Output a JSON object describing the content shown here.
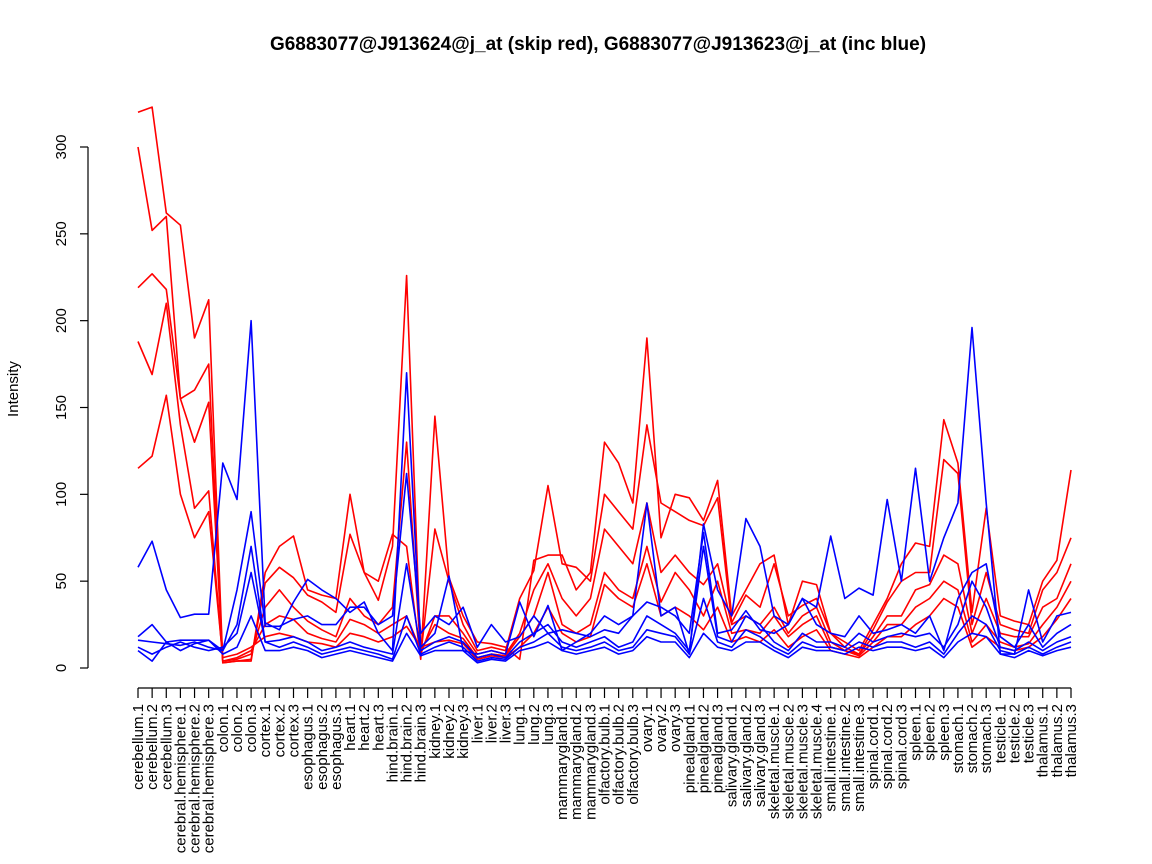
{
  "chart_data": {
    "type": "line",
    "title": "G6883077@J913624@j_at (skip red), G6883077@J913623@j_at (inc blue)",
    "xlabel": "",
    "ylabel": "Intensity",
    "ylim": [
      0,
      300
    ],
    "yticks": [
      0,
      50,
      100,
      150,
      200,
      250,
      300
    ],
    "categories": [
      "cerebellum.1",
      "cerebellum.2",
      "cerebellum.3",
      "cerebral.hemisphere.1",
      "cerebral.hemisphere.2",
      "cerebral.hemisphere.3",
      "colon.1",
      "colon.2",
      "colon.3",
      "cortex.1",
      "cortex.2",
      "cortex.3",
      "esophagus.1",
      "esophagus.2",
      "esophagus.3",
      "heart.1",
      "heart.2",
      "heart.3",
      "hind.brain.1",
      "hind.brain.2",
      "hind.brain.3",
      "kidney.1",
      "kidney.2",
      "kidney.3",
      "liver.1",
      "liver.2",
      "liver.3",
      "lung.1",
      "lung.2",
      "lung.3",
      "mammarygland.1",
      "mammarygland.2",
      "mammarygland.3",
      "olfactory.bulb.1",
      "olfactory.bulb.2",
      "olfactory.bulb.3",
      "ovary.1",
      "ovary.2",
      "ovary.3",
      "pinealgland.1",
      "pinealgland.2",
      "pinealgland.3",
      "salivary.gland.1",
      "salivary.gland.2",
      "salivary.gland.3",
      "skeletal.muscle.1",
      "skeletal.muscle.2",
      "skeletal.muscle.3",
      "skeletal.muscle.4",
      "small.intestine.1",
      "small.intestine.2",
      "small.intestine.3",
      "spinal.cord.1",
      "spinal.cord.2",
      "spinal.cord.3",
      "spleen.1",
      "spleen.2",
      "spleen.3",
      "stomach.1",
      "stomach.2",
      "stomach.3",
      "testicle.1",
      "testicle.2",
      "testicle.3",
      "thalamus.1",
      "thalamus.2",
      "thalamus.3"
    ],
    "series": [
      {
        "color": "#ff0000",
        "values": [
          320,
          323,
          262,
          255,
          190,
          212,
          3,
          4,
          4,
          55,
          70,
          76,
          45,
          42,
          40,
          100,
          55,
          50,
          77,
          70,
          5,
          145,
          52,
          30,
          15,
          14,
          12,
          5,
          62,
          65,
          65,
          45,
          55,
          130,
          118,
          95,
          190,
          75,
          100,
          98,
          85,
          108,
          30,
          45,
          60,
          65,
          25,
          50,
          48,
          20,
          15,
          10,
          25,
          40,
          60,
          72,
          70,
          143,
          118,
          32,
          92,
          30,
          27,
          25,
          50,
          62,
          114
        ]
      },
      {
        "color": "#ff0000",
        "values": [
          300,
          252,
          260,
          155,
          160,
          175,
          3,
          4,
          5,
          49,
          58,
          52,
          42,
          38,
          32,
          77,
          55,
          39,
          70,
          226,
          7,
          80,
          50,
          25,
          10,
          12,
          10,
          40,
          56,
          105,
          60,
          58,
          50,
          100,
          90,
          80,
          140,
          95,
          90,
          85,
          82,
          98,
          26,
          42,
          35,
          60,
          30,
          36,
          40,
          20,
          12,
          8,
          22,
          38,
          50,
          55,
          55,
          120,
          112,
          25,
          55,
          25,
          22,
          20,
          45,
          55,
          75
        ]
      },
      {
        "color": "#ff0000",
        "values": [
          219,
          227,
          218,
          155,
          130,
          153,
          4,
          5,
          8,
          35,
          45,
          35,
          27,
          22,
          18,
          40,
          30,
          25,
          35,
          130,
          8,
          30,
          30,
          20,
          8,
          10,
          8,
          20,
          45,
          60,
          40,
          30,
          40,
          80,
          70,
          60,
          95,
          55,
          65,
          55,
          48,
          60,
          25,
          30,
          25,
          35,
          20,
          30,
          35,
          15,
          10,
          8,
          18,
          30,
          30,
          45,
          48,
          65,
          60,
          20,
          40,
          20,
          18,
          18,
          35,
          40,
          60
        ]
      },
      {
        "color": "#ff0000",
        "values": [
          188,
          169,
          210,
          140,
          92,
          102,
          4,
          6,
          10,
          25,
          30,
          28,
          20,
          17,
          15,
          28,
          25,
          20,
          25,
          30,
          10,
          25,
          20,
          17,
          6,
          8,
          7,
          18,
          30,
          55,
          25,
          20,
          25,
          55,
          45,
          40,
          70,
          38,
          55,
          45,
          30,
          50,
          20,
          22,
          20,
          30,
          18,
          25,
          30,
          12,
          10,
          7,
          15,
          25,
          25,
          35,
          40,
          50,
          45,
          15,
          25,
          15,
          12,
          14,
          25,
          35,
          50
        ]
      },
      {
        "color": "#ff0000",
        "values": [
          115,
          122,
          157,
          100,
          75,
          90,
          6,
          8,
          12,
          18,
          20,
          18,
          15,
          14,
          12,
          20,
          18,
          15,
          18,
          24,
          12,
          15,
          16,
          14,
          5,
          7,
          6,
          12,
          20,
          35,
          20,
          15,
          18,
          48,
          40,
          35,
          60,
          30,
          35,
          30,
          22,
          35,
          15,
          18,
          15,
          22,
          12,
          18,
          22,
          10,
          8,
          6,
          12,
          18,
          18,
          25,
          30,
          40,
          35,
          12,
          18,
          12,
          10,
          12,
          18,
          28,
          40
        ]
      },
      {
        "color": "#0000ff",
        "values": [
          58,
          73,
          45,
          29,
          31,
          31,
          118,
          97,
          200,
          26,
          22,
          38,
          51,
          45,
          40,
          32,
          38,
          20,
          10,
          170,
          12,
          20,
          53,
          10,
          8,
          10,
          8,
          38,
          18,
          36,
          10,
          15,
          20,
          30,
          25,
          30,
          95,
          30,
          35,
          8,
          83,
          45,
          30,
          86,
          70,
          30,
          25,
          40,
          35,
          76,
          40,
          46,
          42,
          97,
          50,
          115,
          50,
          75,
          95,
          196,
          95,
          8,
          8,
          45,
          15,
          30,
          32
        ]
      },
      {
        "color": "#0000ff",
        "values": [
          18,
          25,
          15,
          16,
          16,
          16,
          10,
          45,
          90,
          24,
          24,
          28,
          30,
          25,
          25,
          35,
          35,
          25,
          30,
          112,
          20,
          30,
          25,
          35,
          12,
          25,
          15,
          18,
          30,
          20,
          22,
          20,
          18,
          22,
          20,
          30,
          38,
          35,
          30,
          20,
          78,
          20,
          22,
          33,
          22,
          20,
          25,
          40,
          25,
          20,
          18,
          30,
          20,
          22,
          25,
          20,
          30,
          10,
          40,
          55,
          60,
          18,
          12,
          25,
          12,
          20,
          25
        ]
      },
      {
        "color": "#0000ff",
        "values": [
          16,
          15,
          14,
          13,
          15,
          12,
          10,
          25,
          70,
          15,
          16,
          18,
          15,
          10,
          12,
          15,
          12,
          10,
          8,
          60,
          10,
          15,
          18,
          15,
          6,
          8,
          6,
          15,
          20,
          25,
          15,
          12,
          15,
          18,
          12,
          15,
          30,
          25,
          20,
          10,
          70,
          18,
          15,
          30,
          25,
          15,
          10,
          20,
          15,
          15,
          12,
          20,
          15,
          18,
          20,
          18,
          20,
          12,
          25,
          50,
          35,
          12,
          10,
          15,
          10,
          15,
          18
        ]
      },
      {
        "color": "#0000ff",
        "values": [
          12,
          8,
          12,
          15,
          12,
          10,
          12,
          20,
          55,
          15,
          12,
          15,
          12,
          8,
          10,
          12,
          10,
          8,
          5,
          30,
          8,
          12,
          15,
          12,
          4,
          6,
          5,
          12,
          15,
          20,
          12,
          10,
          12,
          15,
          10,
          12,
          22,
          20,
          18,
          8,
          40,
          15,
          12,
          22,
          18,
          12,
          8,
          15,
          12,
          12,
          10,
          15,
          12,
          15,
          15,
          12,
          15,
          8,
          20,
          30,
          25,
          10,
          8,
          12,
          8,
          12,
          15
        ]
      },
      {
        "color": "#0000ff",
        "values": [
          10,
          4,
          15,
          10,
          14,
          16,
          8,
          12,
          30,
          10,
          10,
          12,
          10,
          6,
          8,
          10,
          8,
          6,
          4,
          20,
          7,
          10,
          10,
          10,
          3,
          5,
          4,
          10,
          12,
          15,
          10,
          8,
          10,
          12,
          8,
          10,
          18,
          15,
          15,
          6,
          20,
          12,
          10,
          15,
          15,
          10,
          6,
          12,
          10,
          10,
          8,
          12,
          10,
          12,
          12,
          10,
          12,
          6,
          15,
          20,
          18,
          8,
          6,
          10,
          7,
          10,
          12
        ]
      }
    ]
  }
}
